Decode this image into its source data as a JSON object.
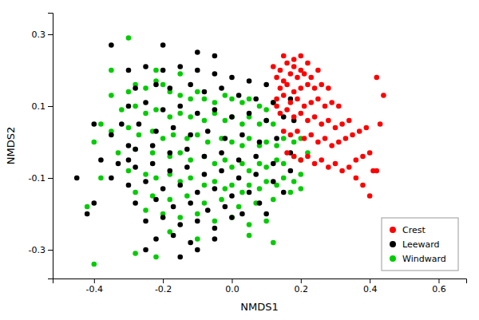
{
  "chart_data": {
    "type": "scatter",
    "xlabel": "NMDS1",
    "ylabel": "NMDS2",
    "xlim": [
      -0.52,
      0.68
    ],
    "ylim": [
      -0.38,
      0.36
    ],
    "xticks": [
      -0.4,
      -0.2,
      {
        "value": 0,
        "label": "0.0"
      },
      0.2,
      0.4,
      0.6
    ],
    "yticks": [
      -0.3,
      -0.1,
      0.1,
      0.3
    ],
    "grid": false,
    "legend": "lower right",
    "marker": "circle",
    "series": [
      {
        "name": "Crest",
        "color": "#ff0000",
        "x": [
          0.12,
          0.14,
          0.16,
          0.18,
          0.2,
          0.13,
          0.15,
          0.17,
          0.19,
          0.21,
          0.23,
          0.25,
          0.14,
          0.16,
          0.18,
          0.2,
          0.22,
          0.24,
          0.26,
          0.28,
          0.13,
          0.15,
          0.17,
          0.19,
          0.21,
          0.23,
          0.25,
          0.27,
          0.29,
          0.31,
          0.14,
          0.16,
          0.18,
          0.2,
          0.22,
          0.24,
          0.26,
          0.28,
          0.3,
          0.32,
          0.34,
          0.15,
          0.17,
          0.19,
          0.21,
          0.23,
          0.25,
          0.27,
          0.29,
          0.31,
          0.33,
          0.35,
          0.37,
          0.39,
          0.16,
          0.18,
          0.2,
          0.22,
          0.24,
          0.26,
          0.28,
          0.3,
          0.32,
          0.34,
          0.36,
          0.38,
          0.4,
          0.42,
          0.44,
          0.43,
          0.41,
          0.15,
          0.18,
          0.2,
          0.22,
          0.13,
          0.36,
          0.38,
          0.4,
          0.42
        ],
        "values": [
          0.21,
          0.2,
          0.22,
          0.21,
          0.2,
          0.18,
          0.17,
          0.19,
          0.18,
          0.19,
          0.18,
          0.2,
          0.15,
          0.16,
          0.14,
          0.15,
          0.16,
          0.15,
          0.16,
          0.15,
          0.12,
          0.13,
          0.11,
          0.12,
          0.1,
          0.11,
          0.12,
          0.1,
          0.11,
          0.1,
          0.08,
          0.09,
          0.07,
          0.08,
          0.06,
          0.07,
          0.05,
          0.06,
          0.04,
          0.05,
          0.06,
          0.03,
          0.02,
          0.03,
          0.01,
          0.02,
          0.0,
          0.01,
          -0.01,
          0.0,
          0.01,
          0.02,
          0.03,
          0.04,
          -0.03,
          -0.04,
          -0.05,
          -0.04,
          -0.06,
          -0.05,
          -0.07,
          -0.06,
          -0.08,
          -0.07,
          -0.05,
          -0.04,
          -0.03,
          0.18,
          0.13,
          0.05,
          -0.08,
          0.24,
          0.23,
          0.24,
          0.22,
          0.1,
          -0.1,
          -0.12,
          -0.15,
          -0.08
        ]
      },
      {
        "name": "Leeward",
        "color": "#000000",
        "x": [
          -0.35,
          -0.2,
          -0.1,
          -0.05,
          -0.3,
          -0.25,
          -0.2,
          -0.15,
          -0.1,
          -0.05,
          0.0,
          0.05,
          0.1,
          -0.28,
          -0.22,
          -0.18,
          -0.12,
          -0.08,
          -0.03,
          0.02,
          0.07,
          0.12,
          0.17,
          -0.3,
          -0.25,
          -0.2,
          -0.15,
          -0.1,
          -0.05,
          0.0,
          0.05,
          0.1,
          0.15,
          -0.32,
          -0.27,
          -0.22,
          -0.17,
          -0.12,
          -0.07,
          -0.02,
          0.03,
          0.08,
          0.13,
          -0.35,
          -0.3,
          -0.28,
          -0.23,
          -0.18,
          -0.13,
          -0.08,
          -0.03,
          0.02,
          0.07,
          0.12,
          0.17,
          -0.33,
          -0.28,
          -0.23,
          -0.18,
          -0.13,
          -0.08,
          -0.03,
          0.02,
          0.07,
          0.12,
          0.17,
          -0.3,
          -0.25,
          -0.2,
          -0.15,
          -0.1,
          -0.05,
          0.0,
          0.05,
          -0.28,
          -0.22,
          -0.17,
          -0.12,
          -0.07,
          -0.02,
          0.03,
          0.08,
          -0.25,
          -0.2,
          -0.15,
          -0.1,
          -0.05,
          0.0,
          -0.22,
          -0.17,
          -0.12,
          -0.4,
          -0.42,
          -0.38,
          -0.45,
          -0.4,
          -0.15,
          -0.1,
          0.18,
          0.15,
          0.1,
          -0.05,
          -0.3,
          -0.35,
          -0.25
        ],
        "values": [
          0.27,
          0.27,
          0.25,
          0.24,
          0.2,
          0.21,
          0.2,
          0.21,
          0.2,
          0.19,
          0.18,
          0.17,
          0.16,
          0.15,
          0.16,
          0.15,
          0.16,
          0.14,
          0.15,
          0.13,
          0.12,
          0.11,
          0.12,
          0.1,
          0.11,
          0.09,
          0.1,
          0.08,
          0.09,
          0.07,
          0.08,
          0.06,
          0.07,
          0.05,
          0.05,
          0.03,
          0.04,
          0.02,
          0.03,
          0.01,
          0.02,
          0.0,
          0.01,
          0.02,
          -0.01,
          -0.02,
          -0.01,
          -0.03,
          -0.02,
          -0.04,
          -0.03,
          -0.05,
          -0.04,
          -0.06,
          -0.03,
          -0.06,
          -0.07,
          -0.06,
          -0.08,
          -0.07,
          -0.09,
          -0.08,
          -0.1,
          -0.09,
          -0.11,
          -0.08,
          -0.12,
          -0.11,
          -0.13,
          -0.12,
          -0.14,
          -0.13,
          -0.15,
          -0.14,
          -0.17,
          -0.16,
          -0.18,
          -0.17,
          -0.19,
          -0.18,
          -0.2,
          -0.17,
          -0.22,
          -0.21,
          -0.23,
          -0.22,
          -0.24,
          -0.21,
          -0.27,
          -0.26,
          -0.28,
          -0.17,
          -0.2,
          -0.05,
          -0.1,
          0.05,
          -0.32,
          -0.3,
          0.06,
          -0.14,
          -0.2,
          -0.27,
          -0.05,
          -0.1,
          -0.3
        ]
      },
      {
        "name": "Windward",
        "color": "#00cc00",
        "x": [
          -0.38,
          -0.35,
          -0.3,
          -0.28,
          -0.25,
          -0.22,
          -0.2,
          -0.18,
          -0.15,
          -0.12,
          -0.1,
          -0.08,
          -0.05,
          -0.02,
          0.0,
          0.03,
          0.05,
          0.08,
          0.1,
          0.12,
          -0.32,
          -0.28,
          -0.25,
          -0.22,
          -0.18,
          -0.15,
          -0.12,
          -0.08,
          -0.05,
          -0.02,
          0.0,
          0.03,
          0.05,
          0.08,
          0.1,
          0.12,
          -0.35,
          -0.3,
          -0.27,
          -0.23,
          -0.2,
          -0.17,
          -0.13,
          -0.1,
          -0.07,
          -0.03,
          0.0,
          0.03,
          0.05,
          0.08,
          0.1,
          0.13,
          0.15,
          0.18,
          0.2,
          -0.33,
          -0.28,
          -0.23,
          -0.18,
          -0.15,
          -0.12,
          -0.08,
          -0.05,
          -0.02,
          0.0,
          0.03,
          0.05,
          0.08,
          0.1,
          0.13,
          0.15,
          0.18,
          0.2,
          0.22,
          -0.3,
          -0.25,
          -0.22,
          -0.18,
          -0.15,
          -0.12,
          -0.08,
          -0.05,
          -0.02,
          0.0,
          0.03,
          0.05,
          0.08,
          0.1,
          0.13,
          0.15,
          0.18,
          0.2,
          -0.28,
          -0.23,
          -0.18,
          -0.13,
          -0.08,
          -0.03,
          0.02,
          0.07,
          0.12,
          0.17,
          0.2,
          -0.25,
          -0.2,
          -0.15,
          -0.1,
          -0.05,
          0.0,
          0.05,
          0.1,
          -0.4,
          -0.42,
          -0.35,
          -0.3,
          -0.22,
          -0.15,
          -0.18,
          -0.1,
          0.05,
          0.12,
          -0.38,
          -0.4,
          -0.28,
          -0.22
        ],
        "values": [
          0.05,
          0.13,
          0.14,
          0.16,
          0.15,
          0.17,
          0.16,
          0.14,
          0.13,
          0.12,
          0.14,
          0.12,
          0.11,
          0.13,
          0.12,
          0.11,
          0.12,
          0.1,
          0.09,
          0.11,
          0.09,
          0.1,
          0.08,
          0.09,
          0.07,
          0.08,
          0.07,
          0.06,
          0.08,
          0.06,
          0.07,
          0.05,
          0.07,
          0.05,
          0.06,
          0.05,
          0.03,
          0.04,
          0.02,
          0.03,
          0.01,
          0.02,
          0.01,
          0.02,
          0.0,
          0.01,
          0.0,
          -0.01,
          0.01,
          -0.01,
          0.0,
          -0.01,
          0.01,
          0.0,
          0.01,
          -0.03,
          -0.02,
          -0.03,
          -0.04,
          -0.03,
          -0.05,
          -0.04,
          -0.06,
          -0.05,
          -0.07,
          -0.06,
          -0.08,
          -0.06,
          -0.07,
          -0.05,
          -0.06,
          -0.04,
          -0.05,
          -0.03,
          -0.08,
          -0.09,
          -0.1,
          -0.09,
          -0.11,
          -0.1,
          -0.12,
          -0.11,
          -0.13,
          -0.12,
          -0.14,
          -0.12,
          -0.13,
          -0.11,
          -0.12,
          -0.1,
          -0.11,
          -0.09,
          -0.14,
          -0.15,
          -0.16,
          -0.15,
          -0.17,
          -0.16,
          -0.18,
          -0.17,
          -0.16,
          -0.14,
          -0.13,
          -0.19,
          -0.2,
          -0.21,
          -0.2,
          -0.22,
          -0.21,
          -0.23,
          -0.22,
          -0.34,
          -0.18,
          0.2,
          0.29,
          0.2,
          0.19,
          -0.25,
          -0.27,
          -0.26,
          -0.28,
          -0.1,
          0.0,
          -0.31,
          -0.32
        ]
      }
    ]
  }
}
